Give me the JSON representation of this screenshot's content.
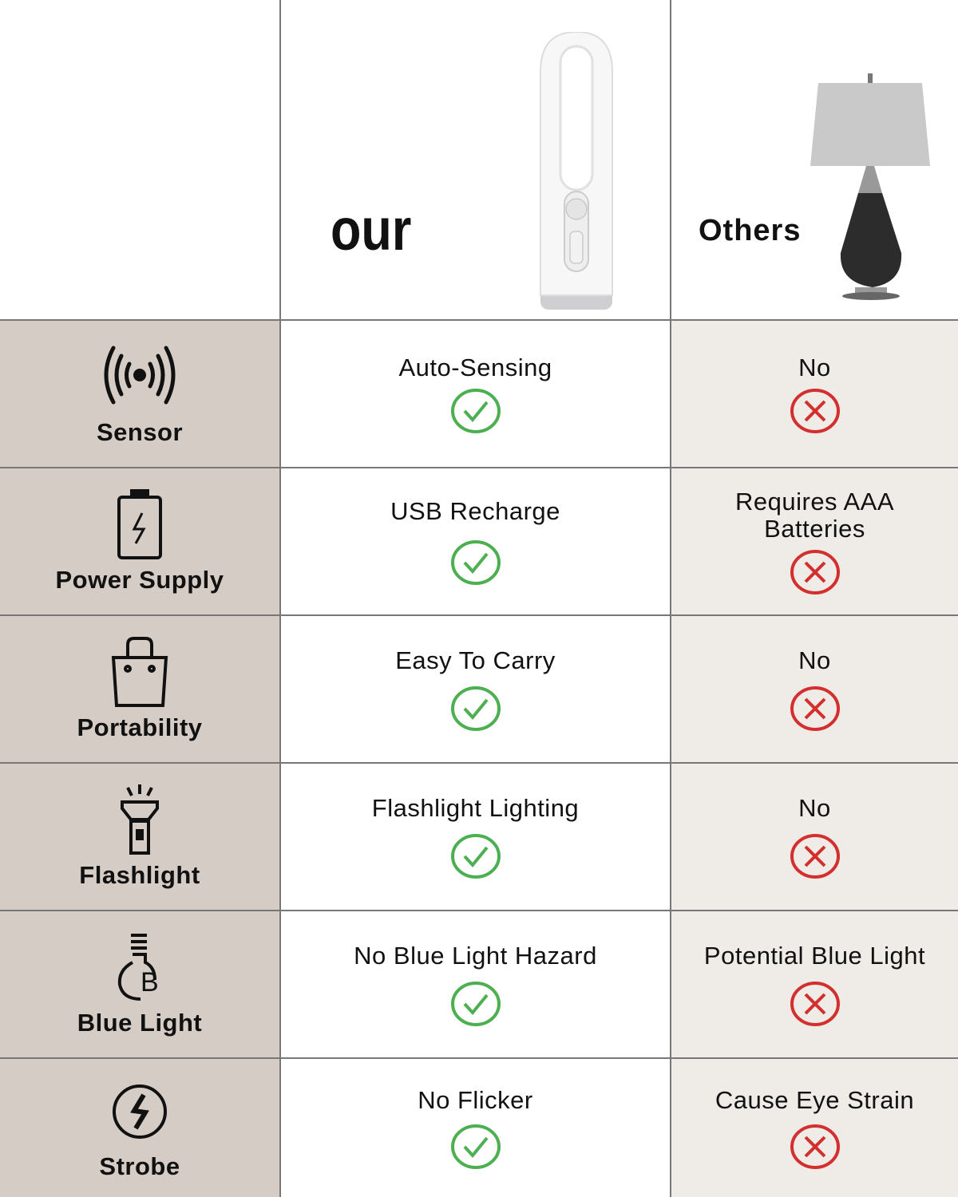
{
  "header": {
    "ours_label": "our",
    "others_label": "Others"
  },
  "colors": {
    "feature_bg": "#d6ccc6",
    "others_bg": "#efebe7",
    "check": "#4caf50",
    "cross": "#d32f2f"
  },
  "rows": [
    {
      "feature": "Sensor",
      "icon": "sensor-waves-icon",
      "ours": "Auto-Sensing",
      "others": "No"
    },
    {
      "feature": "Power Supply",
      "icon": "battery-icon",
      "ours": "USB Recharge",
      "others": "Requires AAA Batteries"
    },
    {
      "feature": "Portability",
      "icon": "bag-icon",
      "ours": "Easy To Carry",
      "others": "No"
    },
    {
      "feature": "Flashlight",
      "icon": "flashlight-icon",
      "ours": "Flashlight Lighting",
      "others": "No"
    },
    {
      "feature": "Blue Light",
      "icon": "bulb-b-icon",
      "ours": "No Blue Light Hazard",
      "others": "Potential Blue Light"
    },
    {
      "feature": "Strobe",
      "icon": "strobe-icon",
      "ours": "No Flicker",
      "others": "Cause Eye Strain"
    }
  ]
}
